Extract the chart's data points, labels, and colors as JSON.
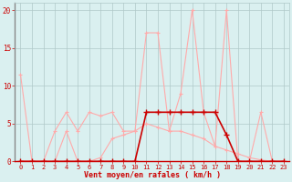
{
  "x_values": [
    0,
    1,
    2,
    3,
    4,
    5,
    6,
    7,
    8,
    9,
    10,
    11,
    12,
    13,
    14,
    15,
    16,
    17,
    18,
    19,
    20,
    21,
    22,
    23
  ],
  "line_gust": [
    0,
    0,
    0,
    4,
    6.5,
    4,
    6.5,
    6,
    6.5,
    4,
    4,
    17,
    17,
    4,
    9,
    20,
    6.5,
    2,
    20,
    0,
    0,
    6.5,
    0,
    0
  ],
  "line_avg": [
    11.5,
    0,
    0,
    0,
    4,
    0,
    0,
    0.5,
    3,
    3.5,
    4,
    5,
    4.5,
    4,
    4,
    3.5,
    3,
    2,
    1.5,
    1,
    0.5,
    0.2,
    0,
    0
  ],
  "line_cur": [
    0,
    0,
    0,
    0,
    0,
    0,
    0,
    0,
    0,
    0,
    0,
    6.5,
    6.5,
    6.5,
    6.5,
    6.5,
    6.5,
    6.5,
    3.5,
    0,
    0,
    0,
    0,
    0
  ],
  "bg_color": "#daf0f0",
  "grid_color": "#b0c8c8",
  "color_light": "#ffaaaa",
  "color_mid": "#ff6666",
  "color_dark": "#cc0000",
  "xlabel": "Vent moyen/en rafales ( km/h )",
  "xlim": [
    -0.5,
    23.5
  ],
  "ylim": [
    0,
    21
  ],
  "yticks": [
    0,
    5,
    10,
    15,
    20
  ],
  "xticks": [
    0,
    1,
    2,
    3,
    4,
    5,
    6,
    7,
    8,
    9,
    10,
    11,
    12,
    13,
    14,
    15,
    16,
    17,
    18,
    19,
    20,
    21,
    22,
    23
  ]
}
